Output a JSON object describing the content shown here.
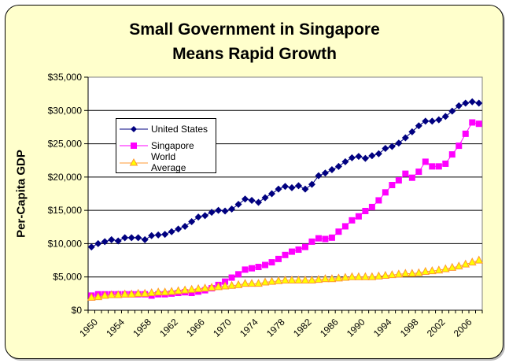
{
  "chart_data": {
    "type": "line",
    "title": "Small Government in Singapore Means Rapid Growth",
    "title_lines": [
      "Small Government in Singapore",
      "Means Rapid Growth"
    ],
    "xlabel": "",
    "ylabel": "Per-Capita GDP",
    "ylim": [
      0,
      35000
    ],
    "xlim": [
      1950,
      2008
    ],
    "yticks": [
      0,
      5000,
      10000,
      15000,
      20000,
      25000,
      30000,
      35000
    ],
    "ytick_labels": [
      "$0",
      "$5,000",
      "$10,000",
      "$15,000",
      "$20,000",
      "$25,000",
      "$30,000",
      "$35,000"
    ],
    "xtick_labels": [
      "1950",
      "1954",
      "1958",
      "1962",
      "1966",
      "1970",
      "1974",
      "1978",
      "1982",
      "1986",
      "1990",
      "1994",
      "1998",
      "2002",
      "2006"
    ],
    "grid": "horizontal",
    "legend_position": "upper-left",
    "x": [
      1950,
      1951,
      1952,
      1953,
      1954,
      1955,
      1956,
      1957,
      1958,
      1959,
      1960,
      1961,
      1962,
      1963,
      1964,
      1965,
      1966,
      1967,
      1968,
      1969,
      1970,
      1971,
      1972,
      1973,
      1974,
      1975,
      1976,
      1977,
      1978,
      1979,
      1980,
      1981,
      1982,
      1983,
      1984,
      1985,
      1986,
      1987,
      1988,
      1989,
      1990,
      1991,
      1992,
      1993,
      1994,
      1995,
      1996,
      1997,
      1998,
      1999,
      2000,
      2001,
      2002,
      2003,
      2004,
      2005,
      2006,
      2007,
      2008
    ],
    "series": [
      {
        "name": "United States",
        "color": "#000080",
        "marker": "diamond",
        "values": [
          9500,
          10000,
          10300,
          10600,
          10400,
          10900,
          10900,
          10900,
          10600,
          11200,
          11300,
          11400,
          11800,
          12200,
          12600,
          13300,
          14000,
          14200,
          14700,
          15000,
          14900,
          15200,
          15900,
          16700,
          16500,
          16200,
          16900,
          17500,
          18200,
          18600,
          18400,
          18700,
          18200,
          18900,
          20200,
          20600,
          21100,
          21600,
          22300,
          22900,
          23100,
          22800,
          23200,
          23500,
          24300,
          24600,
          25100,
          25900,
          26800,
          27700,
          28400,
          28400,
          28600,
          29100,
          29900,
          30700,
          31100,
          31300,
          31100
        ]
      },
      {
        "name": "Singapore",
        "color": "#ff00ff",
        "marker": "square",
        "values": [
          2200,
          2400,
          2400,
          2400,
          2400,
          2400,
          2400,
          2400,
          2400,
          2200,
          2400,
          2400,
          2500,
          2600,
          2700,
          2600,
          2800,
          3000,
          3300,
          3800,
          4300,
          4900,
          5400,
          6100,
          6300,
          6500,
          6800,
          7200,
          7700,
          8300,
          8800,
          9100,
          9500,
          10300,
          10800,
          10700,
          10900,
          11800,
          12600,
          13500,
          14100,
          14900,
          15500,
          16500,
          17700,
          18800,
          19500,
          20500,
          19900,
          20800,
          22300,
          21600,
          21600,
          22000,
          23400,
          24700,
          26500,
          28200,
          28000
        ]
      },
      {
        "name": "World Average",
        "color": "#ff9933",
        "marker_fill": "#ffff00",
        "marker": "triangle",
        "values": [
          1900,
          2000,
          2200,
          2300,
          2300,
          2400,
          2400,
          2500,
          2500,
          2600,
          2700,
          2700,
          2800,
          2900,
          3000,
          3100,
          3200,
          3300,
          3400,
          3500,
          3600,
          3700,
          3800,
          4000,
          4000,
          4000,
          4200,
          4300,
          4400,
          4500,
          4500,
          4500,
          4500,
          4500,
          4600,
          4700,
          4700,
          4800,
          4900,
          5000,
          5000,
          5000,
          5000,
          5100,
          5200,
          5300,
          5400,
          5500,
          5500,
          5600,
          5800,
          5900,
          6000,
          6200,
          6400,
          6600,
          6900,
          7200,
          7500
        ]
      }
    ]
  }
}
